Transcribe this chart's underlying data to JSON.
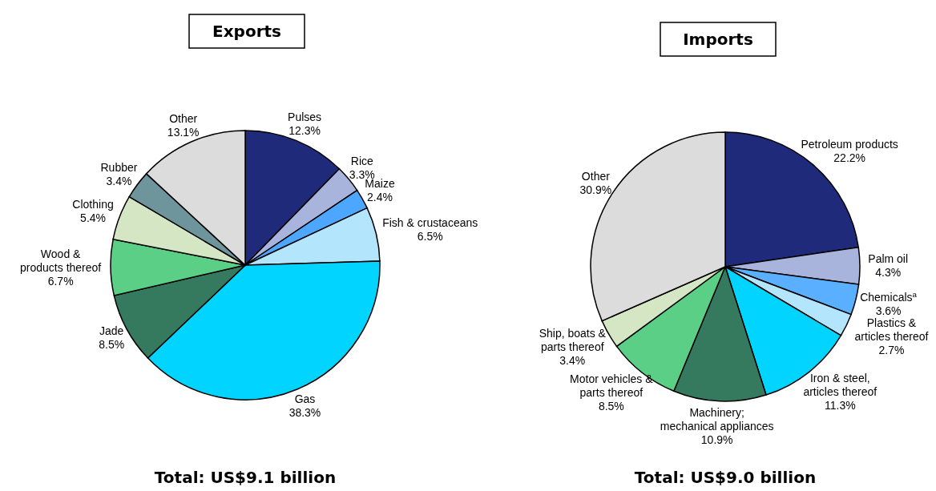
{
  "chart_data": [
    {
      "type": "pie",
      "title": "Exports",
      "annotations": [
        "Total:  US$9.1 billion"
      ],
      "categories": [
        "Pulses",
        "Rice",
        "Maize",
        "Fish & crustaceans",
        "Gas",
        "Jade",
        "Wood &\nproducts thereof",
        "Clothing",
        "Rubber",
        "Other"
      ],
      "values": [
        12.3,
        3.3,
        2.4,
        6.5,
        38.3,
        8.5,
        6.7,
        5.4,
        3.4,
        13.1
      ],
      "value_labels": [
        "12.3%",
        "3.3%",
        "2.4%",
        "6.5%",
        "38.3%",
        "8.5%",
        "6.7%",
        "5.4%",
        "3.4%",
        "13.1%"
      ],
      "colors": [
        "#1f2a7a",
        "#a8b4dc",
        "#4da6ff",
        "#b3e5fc",
        "#00d4ff",
        "#357a5e",
        "#5ccf87",
        "#d5e6c4",
        "#6e949c",
        "#dcdcdc"
      ]
    },
    {
      "type": "pie",
      "title": "Imports",
      "annotations": [
        "Total:  US$9.0 billion"
      ],
      "categories": [
        "Petroleum products",
        "Palm oil",
        "Chemicals$^{a}$",
        "Plastics &\narticles thereof",
        "Iron & steel,\narticles thereof",
        "Machinery;\nmechanical appliances",
        "Motor vehicles &\nparts thereof",
        "Ship, boats &\nparts thereof",
        "Other"
      ],
      "values": [
        22.2,
        4.3,
        3.6,
        2.7,
        11.3,
        10.9,
        8.5,
        3.4,
        30.9
      ],
      "value_labels": [
        "22.2%",
        "4.3%",
        "3.6%",
        "2.7%",
        "11.3%",
        "10.9%",
        "8.5%",
        "3.4%",
        "30.9%"
      ],
      "colors": [
        "#1f2a7a",
        "#a8b4dc",
        "#5ab0ff",
        "#b3e5fc",
        "#00d4ff",
        "#357a5e",
        "#5ccf87",
        "#d5e6c4",
        "#dcdcdc"
      ]
    }
  ]
}
